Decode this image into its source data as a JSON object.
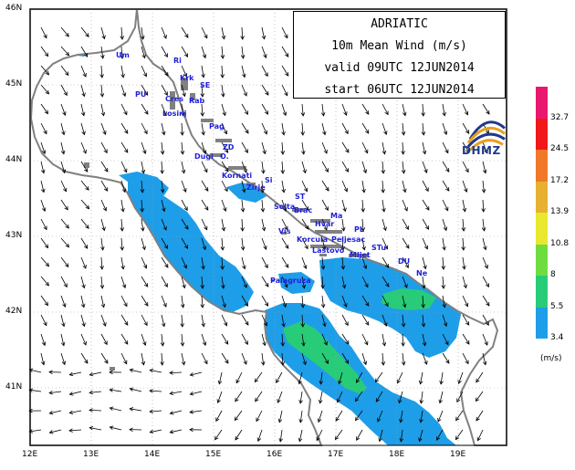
{
  "title": {
    "line1": "ADRIATIC",
    "line2": "10m Mean Wind (m/s)",
    "line3": "valid 09UTC 12JUN2014",
    "line4": "start 06UTC 12JUN2014"
  },
  "logo_text": "DHMZ",
  "colorbar": {
    "unit": "(m/s)",
    "levels": [
      "3.4",
      "5.5",
      "8",
      "10.8",
      "13.9",
      "17.2",
      "24.5",
      "32.7"
    ],
    "colors": [
      "#1e9ee8",
      "#28cc78",
      "#6fdd40",
      "#e8e830",
      "#e8b030",
      "#f07828",
      "#f01818",
      "#e8186f"
    ]
  },
  "axes": {
    "x_ticks": [
      "12E",
      "13E",
      "14E",
      "15E",
      "16E",
      "17E",
      "18E",
      "19E"
    ],
    "y_ticks": [
      "46N",
      "45N",
      "44N",
      "43N",
      "42N",
      "41N"
    ]
  },
  "places": [
    {
      "name": "Um"
    },
    {
      "name": "Ri"
    },
    {
      "name": "Krk"
    },
    {
      "name": "SE"
    },
    {
      "name": "PU"
    },
    {
      "name": "Cres"
    },
    {
      "name": "Rab"
    },
    {
      "name": "Losinj"
    },
    {
      "name": "Pag"
    },
    {
      "name": "ZD"
    },
    {
      "name": "Dugi"
    },
    {
      "name": "O."
    },
    {
      "name": "Kornati"
    },
    {
      "name": "Si"
    },
    {
      "name": "Zirje"
    },
    {
      "name": "ST"
    },
    {
      "name": "Solta"
    },
    {
      "name": "Brac"
    },
    {
      "name": "Ma"
    },
    {
      "name": "Hvar"
    },
    {
      "name": "Vis"
    },
    {
      "name": "PL"
    },
    {
      "name": "Korcula"
    },
    {
      "name": "Peljesac"
    },
    {
      "name": "Lastovo"
    },
    {
      "name": "Mljet"
    },
    {
      "name": "STu"
    },
    {
      "name": "DU"
    },
    {
      "name": "Ne"
    },
    {
      "name": "Palagruza"
    }
  ]
}
